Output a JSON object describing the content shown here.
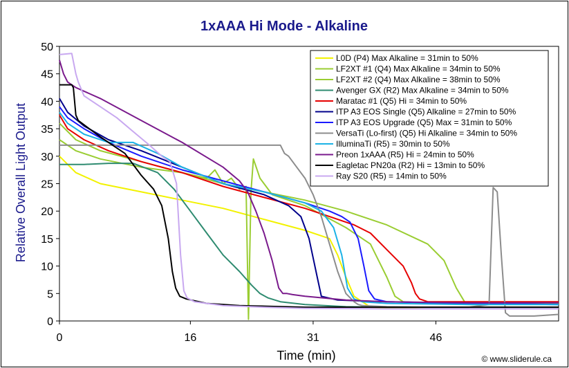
{
  "chart_data": {
    "type": "line",
    "title": "1xAAA Hi Mode - Alkaline",
    "xlabel": "Time (min)",
    "ylabel": "Relative Overall Light Output",
    "xlim": [
      0,
      61
    ],
    "ylim": [
      0,
      50
    ],
    "x_ticks": [
      0,
      16,
      31,
      46
    ],
    "x_tick_labels": [
      "0",
      "16",
      "31",
      "46"
    ],
    "y_ticks": [
      0,
      5,
      10,
      15,
      20,
      25,
      30,
      35,
      40,
      45,
      50
    ],
    "y_tick_labels": [
      "0",
      "5",
      "10",
      "15",
      "20",
      "25",
      "30",
      "35",
      "40",
      "45",
      "50"
    ],
    "grid": false,
    "legend_position": "top-right",
    "credit": "© www.sliderule.ca",
    "series": [
      {
        "name": "L0D (P4) Max Alkaline = 31min to 50%",
        "color": "#f2f200",
        "x": [
          0,
          2,
          5,
          10,
          15,
          20,
          25,
          30,
          33,
          34,
          35,
          36,
          38,
          45,
          50,
          55,
          61
        ],
        "y": [
          30,
          27,
          25,
          23.5,
          22,
          20.5,
          18.5,
          16.5,
          15,
          12,
          8,
          4.5,
          2.5,
          2.2,
          2.2,
          2.2,
          2.2
        ]
      },
      {
        "name": "LF2XT #1 (Q4) Max Alkaline  = 34min to 50%",
        "color": "#9acd32",
        "x": [
          0,
          2,
          5,
          10,
          15,
          18,
          19,
          20,
          21,
          22,
          22.8,
          23.1,
          23.4,
          23.7,
          24.5,
          26,
          30,
          35,
          38,
          40,
          41,
          42,
          45,
          50,
          55,
          61
        ],
        "y": [
          33,
          31,
          29.5,
          28,
          27,
          26,
          27.5,
          25,
          26,
          24,
          24.5,
          0.3,
          23.5,
          29.5,
          26,
          23,
          21,
          17,
          14,
          8,
          4.5,
          3.5,
          3.2,
          3,
          3,
          3
        ]
      },
      {
        "name": "LF2XT #2 (Q4) Max Alkaline = 38min to 50%",
        "color": "#9acd32",
        "x": [
          0,
          2,
          5,
          10,
          15,
          20,
          25,
          30,
          35,
          40,
          45,
          47,
          48.5,
          49.5,
          50,
          55,
          61
        ],
        "y": [
          36,
          33,
          31,
          29,
          27,
          25,
          23.5,
          22,
          20,
          17.5,
          14,
          11,
          6,
          3.5,
          3.2,
          3.2,
          3.2
        ]
      },
      {
        "name": "Avenger GX (R2) Max Alkaline = 34min to 50%",
        "color": "#2e8b70",
        "x": [
          0,
          3,
          6,
          9,
          12,
          14,
          16,
          18,
          20,
          22,
          23.5,
          24.5,
          25.5,
          27,
          30,
          35,
          40,
          50,
          61
        ],
        "y": [
          28.5,
          28.5,
          28.7,
          28.7,
          27,
          24,
          20,
          16,
          12,
          9,
          6.5,
          5,
          4.2,
          3.5,
          3,
          2.6,
          2.5,
          2.5,
          2.5
        ]
      },
      {
        "name": "Maratac #1 (Q5) Hi = 34min to 50%",
        "color": "#e60000",
        "x": [
          0,
          1,
          3,
          6,
          10,
          15,
          20,
          25,
          30,
          33,
          36,
          38,
          40,
          42,
          43,
          43.5,
          44,
          45,
          50,
          61
        ],
        "y": [
          37.5,
          35,
          33,
          31,
          29,
          27,
          24.5,
          22.5,
          20.5,
          19,
          17.5,
          16,
          13,
          10,
          7,
          5,
          4,
          3.5,
          3.5,
          3.5
        ]
      },
      {
        "name": "ITP A3 EOS Single (Q5) Alkaline = 27min to 50%",
        "color": "#00008b",
        "x": [
          0,
          1,
          3,
          6,
          10,
          15,
          20,
          25,
          28,
          29.5,
          30.5,
          31.5,
          32,
          34,
          40,
          50,
          61
        ],
        "y": [
          40.5,
          38,
          35.5,
          33,
          31,
          28,
          25,
          23,
          21,
          19,
          15,
          8,
          4.5,
          3.8,
          3.5,
          3.2,
          3
        ]
      },
      {
        "name": "ITP A3 EOS Upgrade (Q5) Max = 31min to 50%",
        "color": "#1a1aff",
        "x": [
          0,
          1,
          3,
          6,
          10,
          15,
          20,
          25,
          30,
          33,
          34.5,
          35.5,
          36.5,
          37.2,
          37.8,
          38.5,
          40,
          50,
          61
        ],
        "y": [
          39,
          37,
          35,
          32.5,
          30,
          27.5,
          25.5,
          23.5,
          21.5,
          20,
          19,
          18,
          15,
          10,
          5.5,
          4,
          3.5,
          3.2,
          3
        ]
      },
      {
        "name": "VersaTi (Lo-first) (Q5) Hi Alkaline = 34min to 50%",
        "color": "#8c8c8c",
        "x": [
          0,
          5,
          10,
          15,
          20,
          25,
          27,
          27.5,
          28,
          29,
          30,
          31,
          32,
          33,
          34,
          35,
          36,
          36.5,
          37,
          40,
          45,
          50,
          52.5,
          53,
          53.5,
          54,
          54.5,
          55,
          58,
          61
        ],
        "y": [
          32,
          32,
          32,
          32,
          32,
          32,
          32,
          30.5,
          30,
          28,
          26,
          23,
          19,
          14,
          9,
          5,
          3.5,
          3,
          2.8,
          2.6,
          2.5,
          2.5,
          3,
          24.3,
          23.5,
          12,
          1.5,
          0.9,
          0.9,
          1.2
        ]
      },
      {
        "name": "IlluminaTi (R5) = 30min to 50%",
        "color": "#1ab2e6",
        "x": [
          0,
          1,
          3,
          6,
          9,
          12,
          15,
          20,
          25,
          30,
          32,
          33.5,
          34.5,
          35.2,
          36,
          37,
          40,
          50,
          61
        ],
        "y": [
          38,
          36,
          34,
          32.5,
          32.5,
          30.5,
          28,
          25,
          23.5,
          21.5,
          20,
          17,
          12,
          6,
          4,
          3.5,
          3.2,
          3,
          3
        ]
      },
      {
        "name": "Preon 1xAAA (R5) Hi = 24min to 50%",
        "color": "#7a1a8c",
        "x": [
          0,
          0.5,
          1,
          2,
          5,
          10,
          15,
          20,
          22,
          23,
          24,
          25,
          26,
          26.8,
          27.3,
          27.8,
          28.5,
          30,
          35,
          40,
          50,
          61
        ],
        "y": [
          47.5,
          45,
          43.5,
          42.5,
          40.5,
          36.5,
          32.5,
          28,
          25.5,
          23.5,
          20,
          16,
          11,
          6,
          5,
          5,
          4.8,
          4.5,
          3.8,
          3.5,
          3.3,
          3.3
        ]
      },
      {
        "name": "Eagletac PN20a (R2) Hi = 13min to 50%",
        "color": "#000000",
        "x": [
          0,
          1.5,
          1.7,
          2,
          2.3,
          5,
          8,
          10,
          11.5,
          12.5,
          13.3,
          13.8,
          14.2,
          14.7,
          15.5,
          18,
          22,
          30,
          40,
          61
        ],
        "y": [
          43,
          43,
          42.5,
          37.5,
          36.5,
          33.5,
          30.5,
          26.5,
          24,
          21,
          15,
          9,
          6,
          4.5,
          4,
          3.2,
          2.8,
          2.5,
          2.5,
          2.5
        ]
      },
      {
        "name": "Ray S20 (R5) = 14min to 50%",
        "color": "#c8a8f0",
        "x": [
          0,
          1.5,
          2,
          2.3,
          3,
          5,
          7,
          9,
          11,
          12.5,
          13.5,
          14.3,
          14.8,
          15.2,
          15.6,
          16.5,
          20,
          25,
          30,
          40,
          61
        ],
        "y": [
          48.5,
          48.7,
          45,
          43.5,
          41,
          39,
          37,
          34.5,
          32,
          30,
          29,
          25,
          12,
          5.5,
          4.2,
          3.5,
          2.8,
          2.5,
          2.3,
          2.2,
          2.2
        ]
      }
    ]
  }
}
